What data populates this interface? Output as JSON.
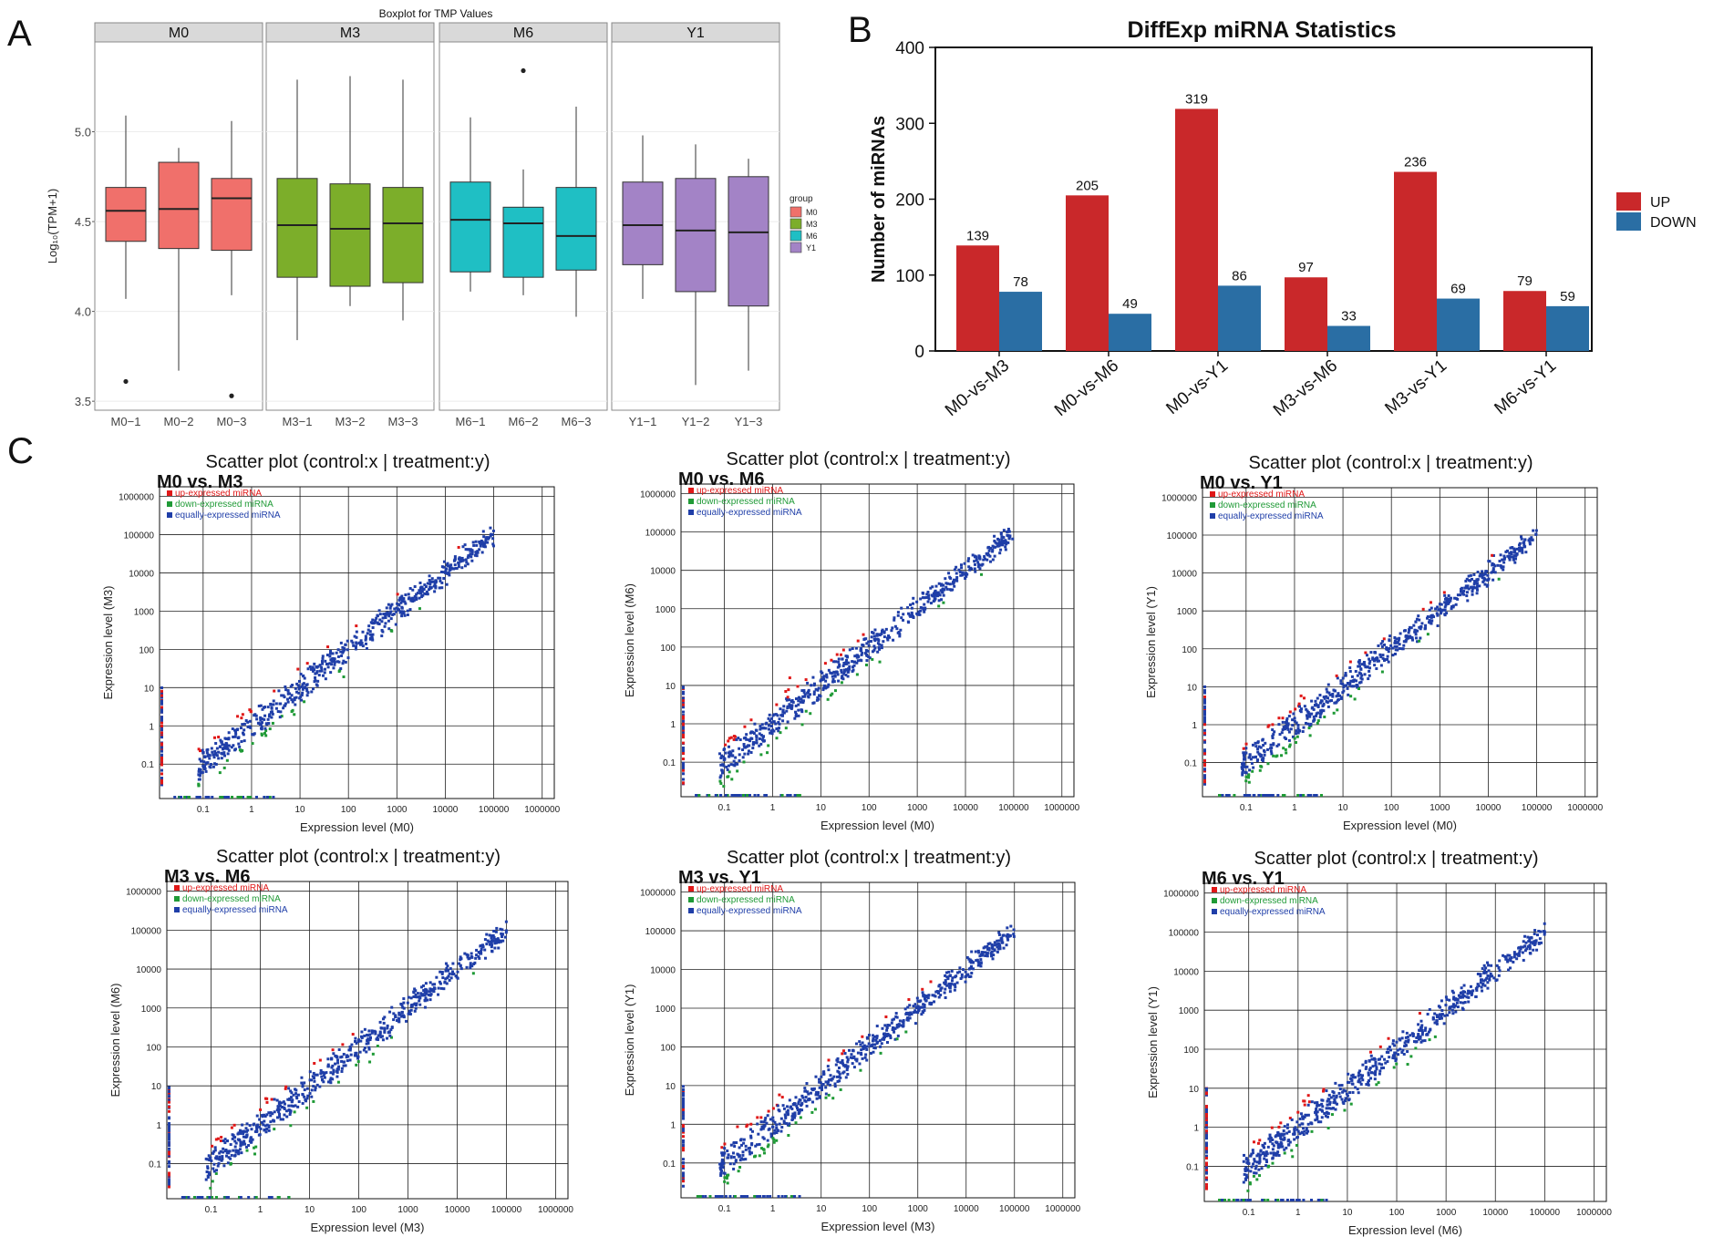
{
  "panel_letters": {
    "a": "A",
    "b": "B",
    "c": "C"
  },
  "colors": {
    "M0": "#f0706b",
    "M3": "#7cae2a",
    "M6": "#1fbfc4",
    "Y1": "#a383c6",
    "up": "#c9282a",
    "down": "#2a6ea4",
    "scatter_up": "#e01818",
    "scatter_down": "#1f9a36",
    "scatter_equal": "#1f3ea8"
  },
  "chart_data": [
    {
      "type": "boxplot",
      "title": "Boxplot for TMP Values",
      "ylabel": "Log₁₀(TPM+1)",
      "ylim": [
        3.45,
        5.5
      ],
      "yticks": [
        "3.5",
        "4.0",
        "4.5",
        "5.0"
      ],
      "legend_title": "group",
      "legend": [
        "M0",
        "M3",
        "M6",
        "Y1"
      ],
      "facets": [
        {
          "name": "M0",
          "samples": [
            {
              "label": "M0−1",
              "min": 4.07,
              "q1": 4.39,
              "median": 4.56,
              "q3": 4.69,
              "max": 5.09,
              "outliers": [
                3.61
              ]
            },
            {
              "label": "M0−2",
              "min": 3.67,
              "q1": 4.35,
              "median": 4.57,
              "q3": 4.83,
              "max": 4.91,
              "outliers": []
            },
            {
              "label": "M0−3",
              "min": 4.09,
              "q1": 4.34,
              "median": 4.63,
              "q3": 4.74,
              "max": 5.06,
              "outliers": [
                3.53
              ]
            }
          ]
        },
        {
          "name": "M3",
          "samples": [
            {
              "label": "M3−1",
              "min": 3.84,
              "q1": 4.19,
              "median": 4.48,
              "q3": 4.74,
              "max": 5.29,
              "outliers": []
            },
            {
              "label": "M3−2",
              "min": 4.03,
              "q1": 4.14,
              "median": 4.46,
              "q3": 4.71,
              "max": 5.31,
              "outliers": []
            },
            {
              "label": "M3−3",
              "min": 3.95,
              "q1": 4.16,
              "median": 4.49,
              "q3": 4.69,
              "max": 5.29,
              "outliers": []
            }
          ]
        },
        {
          "name": "M6",
          "samples": [
            {
              "label": "M6−1",
              "min": 4.11,
              "q1": 4.22,
              "median": 4.51,
              "q3": 4.72,
              "max": 5.08,
              "outliers": []
            },
            {
              "label": "M6−2",
              "min": 4.09,
              "q1": 4.19,
              "median": 4.49,
              "q3": 4.58,
              "max": 4.79,
              "outliers": [
                5.34
              ]
            },
            {
              "label": "M6−3",
              "min": 3.97,
              "q1": 4.23,
              "median": 4.42,
              "q3": 4.69,
              "max": 5.14,
              "outliers": []
            }
          ]
        },
        {
          "name": "Y1",
          "samples": [
            {
              "label": "Y1−1",
              "min": 4.07,
              "q1": 4.26,
              "median": 4.48,
              "q3": 4.72,
              "max": 4.98,
              "outliers": []
            },
            {
              "label": "Y1−2",
              "min": 3.59,
              "q1": 4.11,
              "median": 4.45,
              "q3": 4.74,
              "max": 4.93,
              "outliers": []
            },
            {
              "label": "Y1−3",
              "min": 3.67,
              "q1": 4.03,
              "median": 4.44,
              "q3": 4.75,
              "max": 4.85,
              "outliers": []
            }
          ]
        }
      ]
    },
    {
      "type": "bar",
      "title": "DiffExp miRNA Statistics",
      "ylabel": "Number of miRNAs",
      "ylim": [
        0,
        400
      ],
      "yticks": [
        "0",
        "100",
        "200",
        "300",
        "400"
      ],
      "categories": [
        "M0-vs-M3",
        "M0-vs-M6",
        "M0-vs-Y1",
        "M3-vs-M6",
        "M3-vs-Y1",
        "M6-vs-Y1"
      ],
      "series": [
        {
          "name": "UP",
          "values": [
            139,
            205,
            319,
            97,
            236,
            79
          ]
        },
        {
          "name": "DOWN",
          "values": [
            78,
            49,
            86,
            33,
            69,
            59
          ]
        }
      ],
      "legend": [
        "UP",
        "DOWN"
      ]
    },
    {
      "type": "scatter",
      "scale": "log",
      "plots": [
        {
          "title": "Scatter plot (control:x | treatment:y)",
          "subtitle": "M0 vs. M3",
          "xlabel": "Expression level (M0)",
          "ylabel": "Expression level (M3)"
        },
        {
          "title": "Scatter plot (control:x | treatment:y)",
          "subtitle": "M0 vs. M6",
          "xlabel": "Expression level (M0)",
          "ylabel": "Expression level (M6)"
        },
        {
          "title": "Scatter plot (control:x | treatment:y)",
          "subtitle": "M0 vs. Y1",
          "xlabel": "Expression level (M0)",
          "ylabel": "Expression level (Y1)"
        },
        {
          "title": "Scatter plot (control:x | treatment:y)",
          "subtitle": "M3 vs. M6",
          "xlabel": "Expression level (M3)",
          "ylabel": "Expression level (M6)"
        },
        {
          "title": "Scatter plot (control:x | treatment:y)",
          "subtitle": "M3 vs. Y1",
          "xlabel": "Expression level (M3)",
          "ylabel": "Expression level (Y1)"
        },
        {
          "title": "Scatter plot (control:x | treatment:y)",
          "subtitle": "M6 vs. Y1",
          "xlabel": "Expression level (M6)",
          "ylabel": "Expression level (Y1)"
        }
      ],
      "ticks": [
        "0.1",
        "1",
        "10",
        "100",
        "1000",
        "10000",
        "100000",
        "1000000"
      ],
      "legend": [
        "up-expressed miRNA",
        "down-expressed miRNA",
        "equally-expressed miRNA"
      ]
    }
  ]
}
